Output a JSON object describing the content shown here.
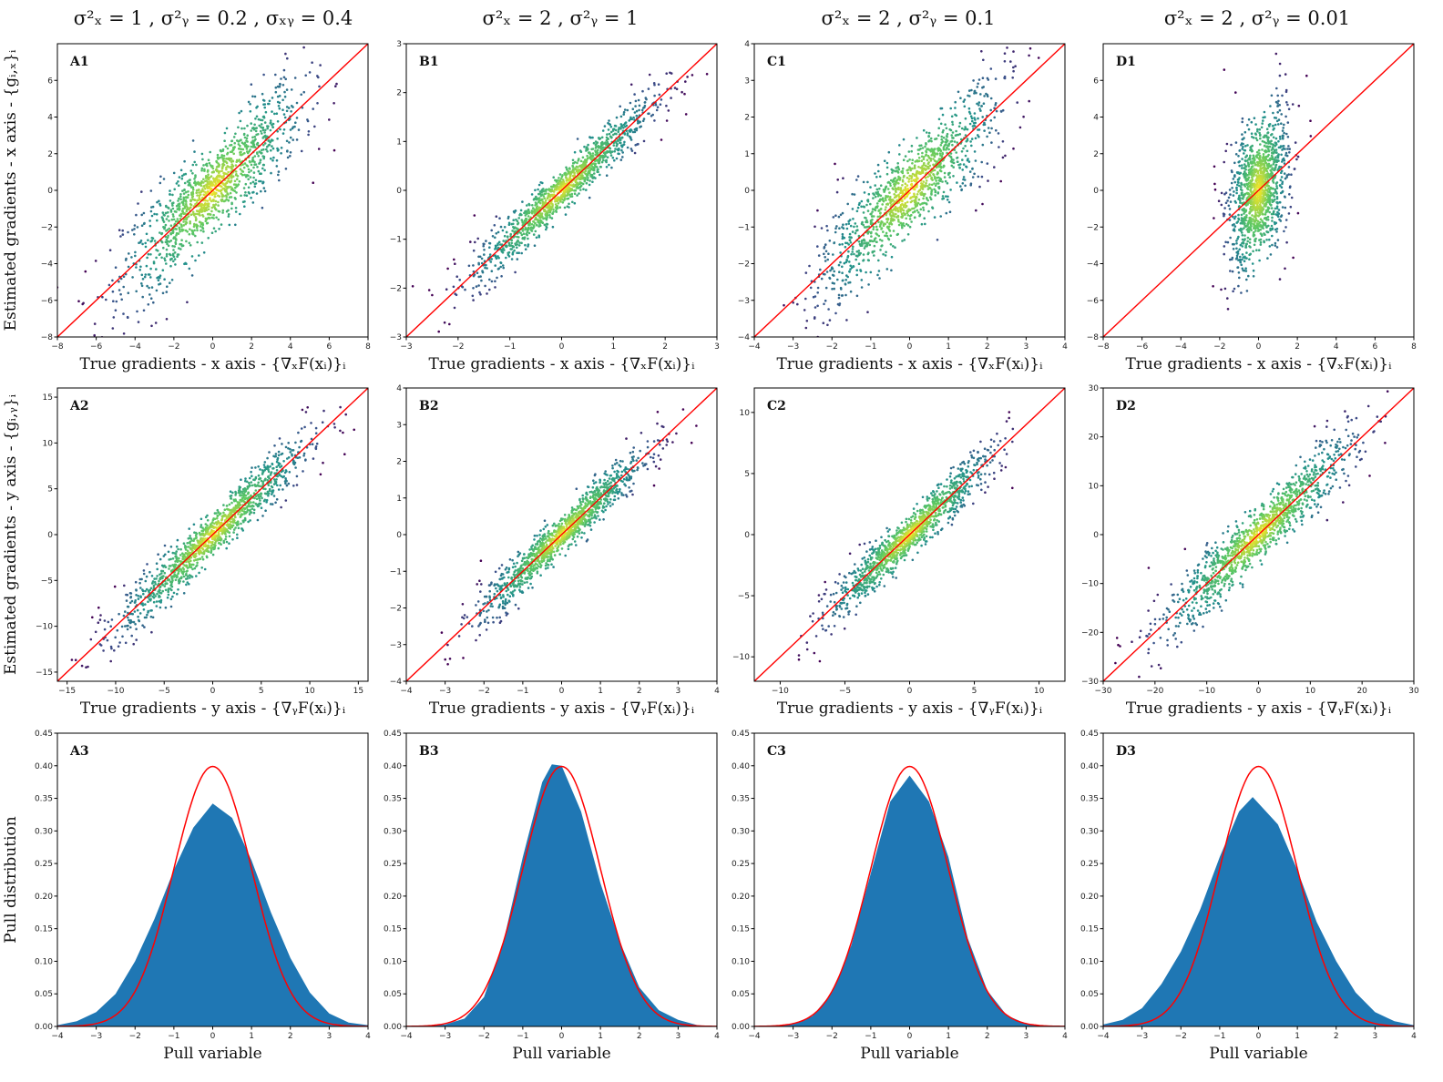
{
  "figure": {
    "column_titles": [
      "σ²ₓ = 1 , σ²ᵧ = 0.2 , σₓᵧ = 0.4",
      "σ²ₓ = 2 , σ²ᵧ = 1",
      "σ²ₓ = 2 , σ²ᵧ = 0.1",
      "σ²ₓ = 2 , σ²ᵧ = 0.01"
    ],
    "row_ylabels": [
      "Estimated gradients - x axis - {gᵢ,ₓ}ᵢ",
      "Estimated gradients - y axis - {gᵢ,ᵧ}ᵢ",
      "Pull distribution"
    ],
    "row_xlabels": [
      "True gradients - x axis - {∇ₓF(xᵢ)}ᵢ",
      "True gradients - y axis - {∇ᵧF(xᵢ)}ᵢ",
      "Pull variable"
    ]
  },
  "colors": {
    "reference_line": "#ff0000",
    "histogram_fill": "#1f77b4",
    "scatter_low": "#440154",
    "scatter_mid": "#21918c",
    "scatter_high": "#fde725"
  },
  "chart_data": [
    {
      "id": "A1",
      "type": "scatter",
      "label": "A1",
      "xlim": [
        -8,
        8
      ],
      "ylim": [
        -8,
        8
      ],
      "xticks": [
        -8,
        -6,
        -4,
        -2,
        0,
        2,
        4,
        6,
        8
      ],
      "yticks": [
        -8,
        -6,
        -4,
        -2,
        0,
        2,
        4,
        6
      ],
      "reference_line": "y = x",
      "spread": {
        "sx": 2.3,
        "noise": 1.6,
        "extra": 0
      }
    },
    {
      "id": "B1",
      "type": "scatter",
      "label": "B1",
      "xlim": [
        -3,
        3
      ],
      "ylim": [
        -3,
        3
      ],
      "xticks": [
        -3,
        -2,
        -1,
        0,
        1,
        2,
        3
      ],
      "yticks": [
        -3,
        -2,
        -1,
        0,
        1,
        2,
        3
      ],
      "reference_line": "y = x",
      "spread": {
        "sx": 0.85,
        "noise": 0.3,
        "extra": 0
      }
    },
    {
      "id": "C1",
      "type": "scatter",
      "label": "C1",
      "xlim": [
        -4,
        4
      ],
      "ylim": [
        -4,
        4
      ],
      "xticks": [
        -4,
        -3,
        -2,
        -1,
        0,
        1,
        2,
        3,
        4
      ],
      "yticks": [
        -4,
        -3,
        -2,
        -1,
        0,
        1,
        2,
        3,
        4
      ],
      "reference_line": "y = x",
      "spread": {
        "sx": 1.1,
        "noise": 0.8,
        "extra": 0.6
      }
    },
    {
      "id": "D1",
      "type": "scatter",
      "label": "D1",
      "xlim": [
        -8,
        8
      ],
      "ylim": [
        -8,
        8
      ],
      "xticks": [
        -8,
        -6,
        -4,
        -2,
        0,
        2,
        4,
        6,
        8
      ],
      "yticks": [
        -8,
        -6,
        -4,
        -2,
        0,
        2,
        4,
        6
      ],
      "reference_line": "y = x",
      "spread": {
        "sx": 0.75,
        "noise": 2.2,
        "extra": 0
      }
    },
    {
      "id": "A2",
      "type": "scatter",
      "label": "A2",
      "xlim": [
        -16,
        16
      ],
      "ylim": [
        -16,
        16
      ],
      "xticks": [
        -15,
        -10,
        -5,
        0,
        5,
        10,
        15
      ],
      "yticks": [
        -15,
        -10,
        -5,
        0,
        5,
        10,
        15
      ],
      "reference_line": "y = x",
      "spread": {
        "sx": 4.8,
        "noise": 1.7,
        "extra": 0
      }
    },
    {
      "id": "B2",
      "type": "scatter",
      "label": "B2",
      "xlim": [
        -4,
        4
      ],
      "ylim": [
        -4,
        4
      ],
      "xticks": [
        -4,
        -3,
        -2,
        -1,
        0,
        1,
        2,
        3,
        4
      ],
      "yticks": [
        -4,
        -3,
        -2,
        -1,
        0,
        1,
        2,
        3,
        4
      ],
      "reference_line": "y = x",
      "spread": {
        "sx": 1.05,
        "noise": 0.35,
        "extra": 0
      }
    },
    {
      "id": "C2",
      "type": "scatter",
      "label": "C2",
      "xlim": [
        -12,
        12
      ],
      "ylim": [
        -12,
        12
      ],
      "xticks": [
        -10,
        -5,
        0,
        5,
        10
      ],
      "yticks": [
        -10,
        -5,
        0,
        5,
        10
      ],
      "reference_line": "y = x",
      "spread": {
        "sx": 3.1,
        "noise": 1.1,
        "extra": 0
      }
    },
    {
      "id": "D2",
      "type": "scatter",
      "label": "D2",
      "xlim": [
        -30,
        30
      ],
      "ylim": [
        -30,
        30
      ],
      "xticks": [
        -30,
        -20,
        -10,
        0,
        10,
        20,
        30
      ],
      "yticks": [
        -30,
        -20,
        -10,
        0,
        10,
        20,
        30
      ],
      "reference_line": "y = x",
      "spread": {
        "sx": 9.0,
        "noise": 3.8,
        "extra": 0
      }
    },
    {
      "id": "A3",
      "type": "area",
      "label": "A3",
      "xlim": [
        -4,
        4
      ],
      "ylim": [
        0,
        0.45
      ],
      "xticks": [
        -4,
        -3,
        -2,
        -1,
        0,
        1,
        2,
        3,
        4
      ],
      "yticks": [
        0.0,
        0.05,
        0.1,
        0.15,
        0.2,
        0.25,
        0.3,
        0.35,
        0.4,
        0.45
      ],
      "reference_curve": "standard normal pdf",
      "x": [
        -4,
        -3.5,
        -3,
        -2.5,
        -2,
        -1.5,
        -1,
        -0.5,
        0,
        0.5,
        1,
        1.5,
        2,
        2.5,
        3,
        3.5,
        4
      ],
      "y": [
        0.002,
        0.008,
        0.022,
        0.05,
        0.1,
        0.165,
        0.24,
        0.305,
        0.342,
        0.32,
        0.255,
        0.175,
        0.105,
        0.052,
        0.02,
        0.006,
        0.002
      ]
    },
    {
      "id": "B3",
      "type": "area",
      "label": "B3",
      "xlim": [
        -4,
        4
      ],
      "ylim": [
        0,
        0.45
      ],
      "xticks": [
        -4,
        -3,
        -2,
        -1,
        0,
        1,
        2,
        3,
        4
      ],
      "yticks": [
        0.0,
        0.05,
        0.1,
        0.15,
        0.2,
        0.25,
        0.3,
        0.35,
        0.4,
        0.45
      ],
      "reference_curve": "standard normal pdf",
      "x": [
        -4,
        -3.5,
        -3,
        -2.5,
        -2,
        -1.5,
        -1,
        -0.5,
        -0.25,
        0,
        0.5,
        1,
        1.5,
        2,
        2.5,
        3,
        3.5,
        4
      ],
      "y": [
        0.0,
        0.001,
        0.003,
        0.012,
        0.045,
        0.13,
        0.26,
        0.375,
        0.402,
        0.4,
        0.33,
        0.22,
        0.13,
        0.06,
        0.025,
        0.01,
        0.002,
        0.0
      ]
    },
    {
      "id": "C3",
      "type": "area",
      "label": "C3",
      "xlim": [
        -4,
        4
      ],
      "ylim": [
        0,
        0.45
      ],
      "xticks": [
        -4,
        -3,
        -2,
        -1,
        0,
        1,
        2,
        3,
        4
      ],
      "yticks": [
        0.0,
        0.05,
        0.1,
        0.15,
        0.2,
        0.25,
        0.3,
        0.35,
        0.4,
        0.45
      ],
      "reference_curve": "standard normal pdf",
      "x": [
        -4,
        -3.5,
        -3,
        -2.5,
        -2,
        -1.5,
        -1,
        -0.5,
        0,
        0.5,
        1,
        1.5,
        2,
        2.5,
        3,
        3.5,
        4
      ],
      "y": [
        0.0,
        0.001,
        0.004,
        0.016,
        0.052,
        0.125,
        0.235,
        0.345,
        0.385,
        0.345,
        0.26,
        0.135,
        0.055,
        0.017,
        0.004,
        0.001,
        0.0
      ]
    },
    {
      "id": "D3",
      "type": "area",
      "label": "D3",
      "xlim": [
        -4,
        4
      ],
      "ylim": [
        0,
        0.45
      ],
      "xticks": [
        -4,
        -3,
        -2,
        -1,
        0,
        1,
        2,
        3,
        4
      ],
      "yticks": [
        0.0,
        0.05,
        0.1,
        0.15,
        0.2,
        0.25,
        0.3,
        0.35,
        0.4,
        0.45
      ],
      "reference_curve": "standard normal pdf",
      "x": [
        -4,
        -3.5,
        -3,
        -2.5,
        -2,
        -1.5,
        -1,
        -0.5,
        -0.15,
        0.5,
        1,
        1.5,
        2,
        2.5,
        3,
        3.5,
        4
      ],
      "y": [
        0.003,
        0.01,
        0.028,
        0.065,
        0.115,
        0.18,
        0.26,
        0.33,
        0.352,
        0.31,
        0.24,
        0.16,
        0.1,
        0.052,
        0.022,
        0.008,
        0.002
      ]
    }
  ]
}
